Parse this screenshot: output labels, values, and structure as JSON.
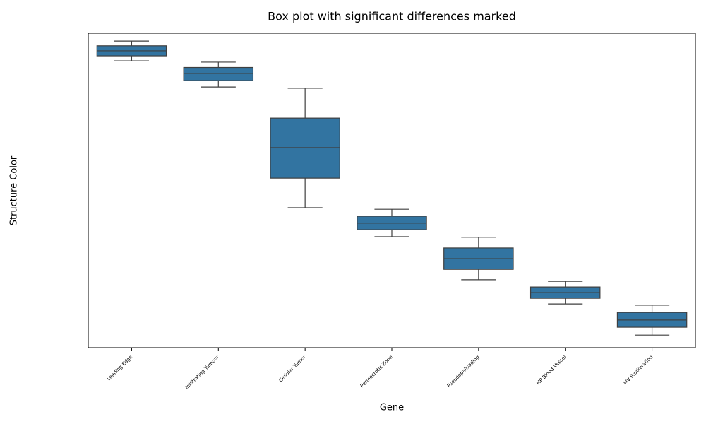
{
  "chart_data": {
    "type": "box",
    "title": "Box plot with significant differences marked",
    "xlabel": "Gene",
    "ylabel": "Structure Color",
    "categories": [
      "Leading Edge",
      "Infiltrating Tumour",
      "Cellular Tumor",
      "Perinecrotic Zone",
      "Pseudopalisading",
      "HP Blood Vessel",
      "MV Proliferation"
    ],
    "whisker_high": [
      97.5,
      90.8,
      82.5,
      44.0,
      35.1,
      21.1,
      13.5
    ],
    "q3": [
      96.0,
      89.1,
      73.0,
      41.8,
      31.7,
      19.3,
      11.2
    ],
    "median": [
      94.4,
      87.2,
      63.6,
      39.6,
      28.3,
      17.5,
      8.8
    ],
    "q1": [
      92.8,
      84.9,
      53.9,
      37.5,
      24.9,
      15.7,
      6.5
    ],
    "whisker_low": [
      91.2,
      82.9,
      44.5,
      35.3,
      21.6,
      13.9,
      4.0
    ],
    "color": "#3274a1",
    "ylim": [
      0,
      100
    ]
  }
}
